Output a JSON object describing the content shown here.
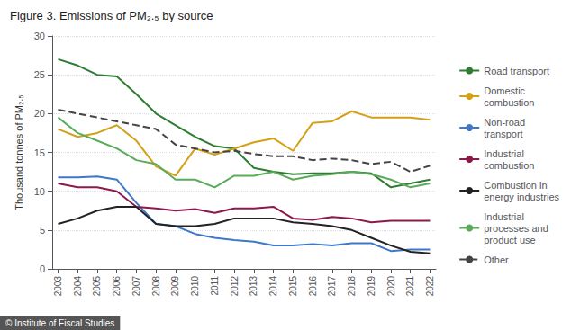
{
  "chart_data": {
    "type": "line",
    "title": "Figure 3. Emissions of PM₂.₅ by source",
    "y_label": "Thousand tonnes of PM₂.₅",
    "footer": "© Institute of Fiscal Studies",
    "x": [
      2003,
      2004,
      2005,
      2006,
      2007,
      2008,
      2009,
      2010,
      2011,
      2012,
      2013,
      2014,
      2015,
      2016,
      2017,
      2018,
      2019,
      2020,
      2021,
      2022
    ],
    "xlim": [
      2002.7,
      2022.3
    ],
    "xticks": [
      2003,
      2004,
      2005,
      2006,
      2007,
      2008,
      2009,
      2010,
      2011,
      2012,
      2013,
      2014,
      2015,
      2016,
      2017,
      2018,
      2019,
      2020,
      2021,
      2022
    ],
    "ylim": [
      0,
      30
    ],
    "yticks": [
      0,
      5,
      10,
      15,
      20,
      25,
      30
    ],
    "grid": true,
    "legend": "right",
    "series": [
      {
        "name": "Road transport",
        "color": "#2e7d32",
        "line_style": "solid",
        "values": [
          27.0,
          26.2,
          25.0,
          24.8,
          22.5,
          20.0,
          18.5,
          17.0,
          15.8,
          15.5,
          13.0,
          12.5,
          12.2,
          12.3,
          12.3,
          12.5,
          12.3,
          10.5,
          11.0,
          11.5
        ]
      },
      {
        "name": "Domestic\ncombustion",
        "color": "#d4a017",
        "line_style": "solid",
        "values": [
          18.0,
          17.0,
          17.5,
          18.5,
          16.5,
          13.2,
          12.0,
          15.5,
          14.7,
          15.5,
          16.3,
          16.8,
          15.2,
          18.8,
          19.0,
          20.3,
          19.5,
          19.5,
          19.5,
          19.2
        ]
      },
      {
        "name": "Non-road\ntransport",
        "color": "#3d78c9",
        "line_style": "solid",
        "values": [
          11.8,
          11.8,
          11.9,
          11.5,
          8.5,
          5.8,
          5.5,
          4.5,
          4.0,
          3.7,
          3.5,
          3.0,
          3.0,
          3.2,
          3.0,
          3.3,
          3.3,
          2.3,
          2.5,
          2.5
        ]
      },
      {
        "name": "Industrial\ncombustion",
        "color": "#8b1a4a",
        "line_style": "solid",
        "values": [
          11.0,
          10.5,
          10.5,
          10.0,
          8.0,
          7.8,
          7.5,
          7.7,
          7.2,
          7.8,
          7.8,
          8.0,
          6.5,
          6.3,
          6.7,
          6.5,
          6.0,
          6.2,
          6.2,
          6.2
        ]
      },
      {
        "name": "Combustion in\nenergy industries",
        "color": "#222222",
        "line_style": "solid",
        "values": [
          5.8,
          6.5,
          7.5,
          8.0,
          8.0,
          5.8,
          5.5,
          5.5,
          5.8,
          6.5,
          6.5,
          6.5,
          6.0,
          5.8,
          5.5,
          5.0,
          4.0,
          3.0,
          2.2,
          2.0
        ]
      },
      {
        "name": "Industrial\nprocesses and\nproduct use",
        "color": "#5aab5a",
        "line_style": "solid",
        "values": [
          19.5,
          17.5,
          16.5,
          15.5,
          14.0,
          13.5,
          11.5,
          11.5,
          10.5,
          12.0,
          12.0,
          12.5,
          11.5,
          12.0,
          12.2,
          12.5,
          12.2,
          11.5,
          10.5,
          11.0
        ]
      },
      {
        "name": "Other",
        "color": "#444444",
        "line_style": "dashed",
        "values": [
          20.5,
          20.0,
          19.5,
          19.0,
          18.5,
          18.0,
          16.0,
          15.5,
          15.0,
          15.2,
          14.8,
          14.5,
          14.5,
          14.0,
          14.2,
          14.0,
          13.5,
          13.8,
          12.5,
          13.3
        ]
      }
    ]
  }
}
